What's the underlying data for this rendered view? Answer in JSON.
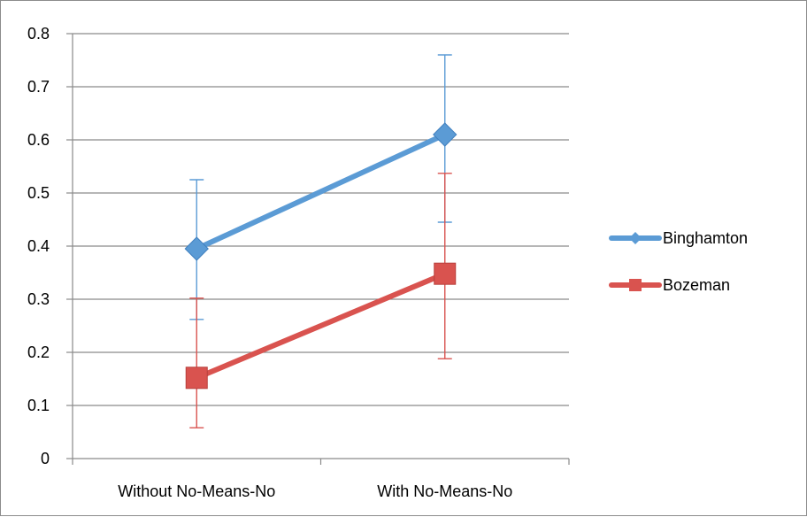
{
  "chart_data": {
    "type": "line",
    "title": "",
    "xlabel": "",
    "ylabel": "",
    "categories": [
      "Without No-Means-No",
      "With No-Means-No"
    ],
    "ylim": [
      0,
      0.8
    ],
    "yticks": [
      0,
      0.1,
      0.2,
      0.3,
      0.4,
      0.5,
      0.6,
      0.7,
      0.8
    ],
    "ytick_labels": [
      "0",
      "0.1",
      "0.2",
      "0.3",
      "0.4",
      "0.5",
      "0.6",
      "0.7",
      "0.8"
    ],
    "grid": true,
    "legend_position": "right",
    "series": [
      {
        "name": "Binghamton",
        "color": "#5b9bd5",
        "marker": "diamond",
        "values": [
          0.395,
          0.61
        ],
        "error_low": [
          0.262,
          0.445
        ],
        "error_high": [
          0.525,
          0.76
        ]
      },
      {
        "name": "Bozeman",
        "color": "#d9534f",
        "marker": "square",
        "values": [
          0.152,
          0.348
        ],
        "error_low": [
          0.058,
          0.188
        ],
        "error_high": [
          0.302,
          0.537
        ]
      }
    ]
  }
}
